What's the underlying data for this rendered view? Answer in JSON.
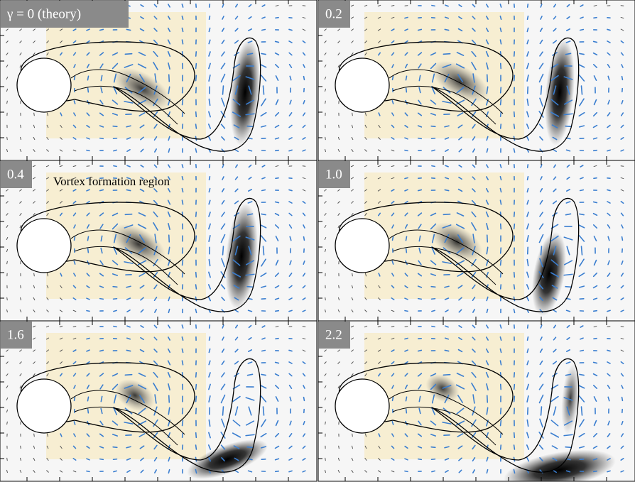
{
  "panels": [
    {
      "label": "γ = 0 (theory)"
    },
    {
      "label": "0.2"
    },
    {
      "label": "0.4"
    },
    {
      "label": "1.0"
    },
    {
      "label": "1.6"
    },
    {
      "label": "2.2"
    }
  ],
  "annotation": "Vortex formation region"
}
